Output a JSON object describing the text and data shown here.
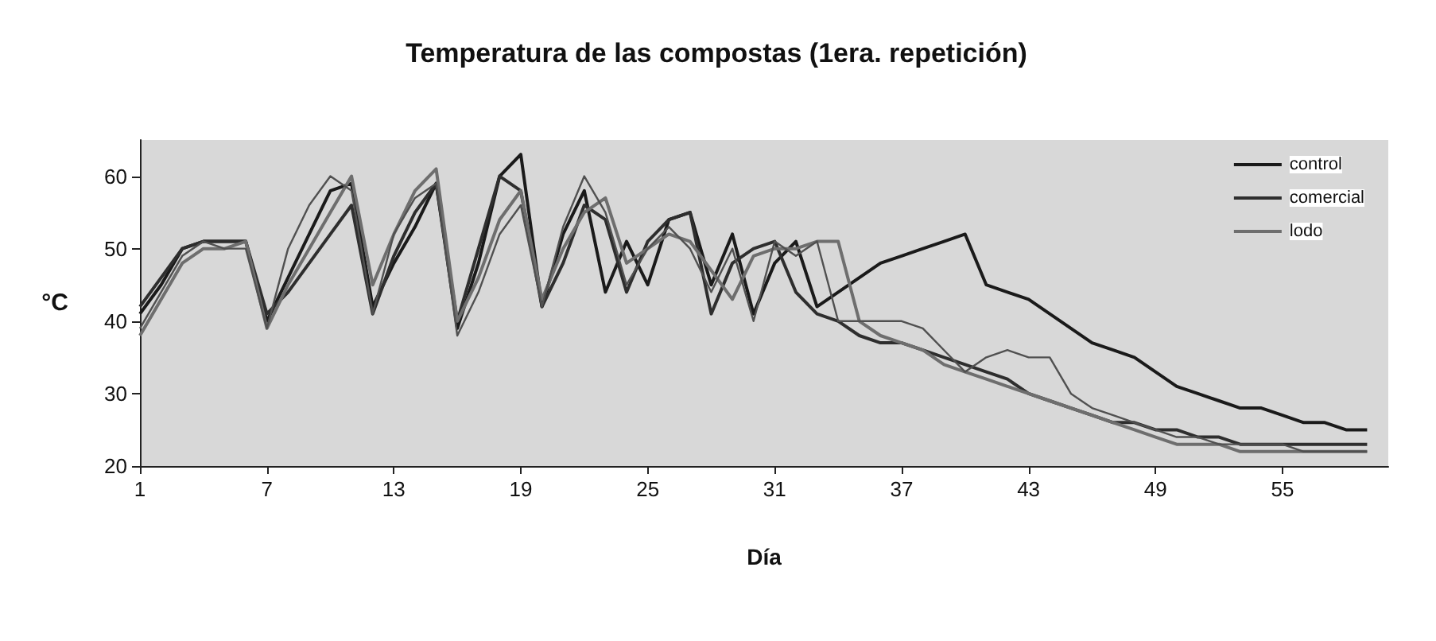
{
  "chart_data": {
    "type": "line",
    "title": "Temperatura de las compostas (1era. repetición)",
    "xlabel": "Día",
    "ylabel": "°C",
    "x": [
      1,
      2,
      3,
      4,
      5,
      6,
      7,
      8,
      9,
      10,
      11,
      12,
      13,
      14,
      15,
      16,
      17,
      18,
      19,
      20,
      21,
      22,
      23,
      24,
      25,
      26,
      27,
      28,
      29,
      30,
      31,
      32,
      33,
      34,
      35,
      36,
      37,
      38,
      39,
      40,
      41,
      42,
      43,
      44,
      45,
      46,
      47,
      48,
      49,
      50,
      51,
      52,
      53,
      54,
      55,
      56,
      57,
      58,
      59
    ],
    "series": [
      {
        "name": "control",
        "color": "#1a1a1a",
        "values": [
          41,
          45,
          50,
          51,
          51,
          51,
          40,
          46,
          52,
          58,
          59,
          42,
          48,
          53,
          59,
          39,
          48,
          60,
          63,
          42,
          52,
          58,
          44,
          51,
          45,
          54,
          55,
          45,
          52,
          41,
          48,
          51,
          42,
          44,
          46,
          48,
          49,
          50,
          51,
          52,
          45,
          44,
          43,
          41,
          39,
          37,
          36,
          35,
          33,
          31,
          30,
          29,
          28,
          28,
          27,
          26,
          26,
          25,
          25
        ]
      },
      {
        "name": "comercial",
        "color": "#2e2e2e",
        "values": [
          42,
          46,
          50,
          51,
          51,
          51,
          41,
          44,
          48,
          52,
          56,
          41,
          49,
          55,
          59,
          40,
          50,
          60,
          58,
          42,
          48,
          56,
          54,
          44,
          51,
          54,
          55,
          41,
          48,
          50,
          51,
          44,
          41,
          40,
          38,
          37,
          37,
          36,
          35,
          34,
          33,
          32,
          30,
          29,
          28,
          27,
          26,
          26,
          25,
          25,
          24,
          24,
          23,
          23,
          23,
          23,
          23,
          23,
          23
        ]
      },
      {
        "name": "lodo",
        "color": "#6e6e6e",
        "values": [
          38,
          43,
          48,
          50,
          50,
          51,
          39,
          45,
          50,
          55,
          60,
          45,
          52,
          58,
          61,
          40,
          46,
          54,
          58,
          43,
          50,
          55,
          57,
          48,
          50,
          52,
          51,
          47,
          43,
          49,
          50,
          50,
          51,
          51,
          40,
          38,
          37,
          36,
          34,
          33,
          32,
          31,
          30,
          29,
          28,
          27,
          26,
          25,
          24,
          23,
          23,
          23,
          22,
          22,
          22,
          22,
          22,
          22,
          22
        ]
      },
      {
        "color": "#505050",
        "values": [
          39,
          44,
          49,
          51,
          50,
          50,
          39,
          50,
          56,
          60,
          58,
          41,
          52,
          57,
          59,
          38,
          44,
          52,
          56,
          42,
          53,
          60,
          55,
          45,
          50,
          53,
          50,
          44,
          50,
          40,
          51,
          49,
          51,
          40,
          40,
          40,
          40,
          39,
          36,
          33,
          35,
          36,
          35,
          35,
          30,
          28,
          27,
          26,
          25,
          24,
          24,
          23,
          23,
          23,
          23,
          22,
          22,
          22,
          22
        ]
      }
    ],
    "xlim": [
      1,
      60
    ],
    "xticks": [
      1,
      7,
      13,
      19,
      25,
      31,
      37,
      43,
      49,
      55
    ],
    "ylim": [
      20,
      65
    ],
    "yticks": [
      20,
      30,
      40,
      50,
      60
    ],
    "grid": false,
    "legend": "top right",
    "marker": "none",
    "line_style": "solid"
  }
}
